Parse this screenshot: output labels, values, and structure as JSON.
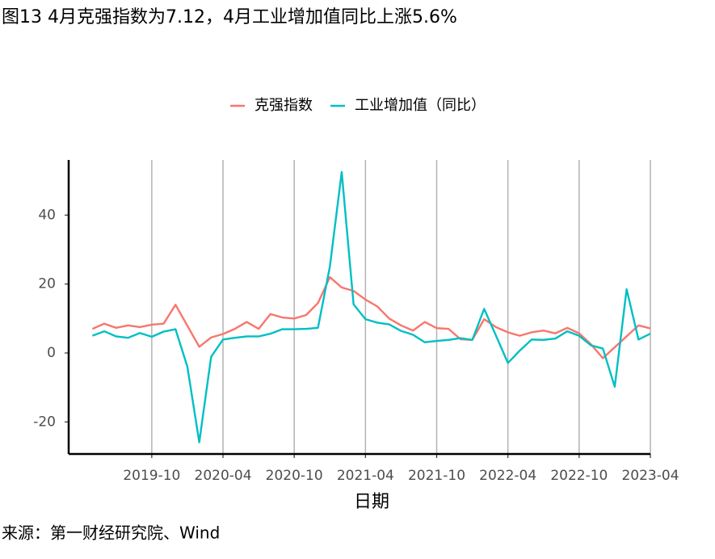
{
  "chart_data": {
    "type": "line",
    "title": "图13 4月克强指数为7.12，4月工业增加值同比上涨5.6%",
    "x_label": "日期",
    "source": "来源：第一财经研究院、Wind",
    "xlim": [
      "2019-03",
      "2023-04"
    ],
    "xticks": [
      "2019-10",
      "2020-04",
      "2020-10",
      "2021-04",
      "2021-10",
      "2022-04",
      "2022-10",
      "2023-04"
    ],
    "ylim": [
      -29.3,
      56
    ],
    "yticks": [
      -20,
      0,
      20,
      40
    ],
    "grid": true,
    "legend": "top",
    "series": [
      {
        "name": "克强指数",
        "color": "#f8766d",
        "x": [
          "2019-05",
          "2019-06",
          "2019-07",
          "2019-08",
          "2019-09",
          "2019-10",
          "2019-11",
          "2019-12",
          "2020-02",
          "2020-03",
          "2020-04",
          "2020-05",
          "2020-06",
          "2020-07",
          "2020-08",
          "2020-09",
          "2020-10",
          "2020-11",
          "2020-12",
          "2021-01",
          "2021-02",
          "2021-03",
          "2021-04",
          "2021-05",
          "2021-06",
          "2021-07",
          "2021-08",
          "2021-09",
          "2021-10",
          "2021-11",
          "2021-12",
          "2022-01",
          "2022-02",
          "2022-03",
          "2022-04",
          "2022-05",
          "2022-06",
          "2022-07",
          "2022-08",
          "2022-09",
          "2022-10",
          "2022-11",
          "2022-12",
          "2023-03",
          "2023-04"
        ],
        "values": [
          7,
          8.5,
          7.3,
          8,
          7.5,
          8.2,
          8.5,
          14,
          1.8,
          4.5,
          5.5,
          7,
          9,
          7,
          11.3,
          10.3,
          10,
          11,
          14.5,
          22,
          19,
          18,
          15.5,
          13.5,
          10,
          8,
          6.5,
          9,
          7.2,
          7,
          4,
          3.8,
          9.8,
          7.5,
          6,
          5,
          6,
          6.5,
          5.7,
          7.3,
          5.7,
          2.5,
          -1.5,
          8,
          7.12
        ]
      },
      {
        "name": "工业增加值（同比）",
        "color": "#00bfc4",
        "x": [
          "2019-05",
          "2019-06",
          "2019-07",
          "2019-08",
          "2019-09",
          "2019-10",
          "2019-11",
          "2019-12",
          "2020-01",
          "2020-02",
          "2020-03",
          "2020-04",
          "2020-05",
          "2020-06",
          "2020-07",
          "2020-08",
          "2020-09",
          "2020-10",
          "2020-11",
          "2020-12",
          "2021-01",
          "2021-02",
          "2021-03",
          "2021-04",
          "2021-05",
          "2021-06",
          "2021-07",
          "2021-08",
          "2021-09",
          "2021-10",
          "2021-11",
          "2021-12",
          "2022-01",
          "2022-02",
          "2022-03",
          "2022-04",
          "2022-05",
          "2022-06",
          "2022-07",
          "2022-08",
          "2022-09",
          "2022-10",
          "2022-11",
          "2022-12",
          "2023-01",
          "2023-02",
          "2023-03",
          "2023-04"
        ],
        "values": [
          5,
          6.3,
          4.8,
          4.4,
          5.8,
          4.7,
          6.2,
          6.9,
          -4,
          -25.9,
          -1.1,
          3.9,
          4.4,
          4.8,
          4.8,
          5.6,
          6.9,
          6.9,
          7,
          7.3,
          25,
          52.5,
          14.1,
          9.8,
          8.8,
          8.3,
          6.4,
          5.3,
          3.1,
          3.5,
          3.8,
          4.3,
          3.8,
          12.8,
          5,
          -2.9,
          0.7,
          3.9,
          3.8,
          4.2,
          6.3,
          5,
          2.2,
          1.3,
          -9.8,
          18.5,
          3.9,
          5.6
        ]
      }
    ]
  }
}
